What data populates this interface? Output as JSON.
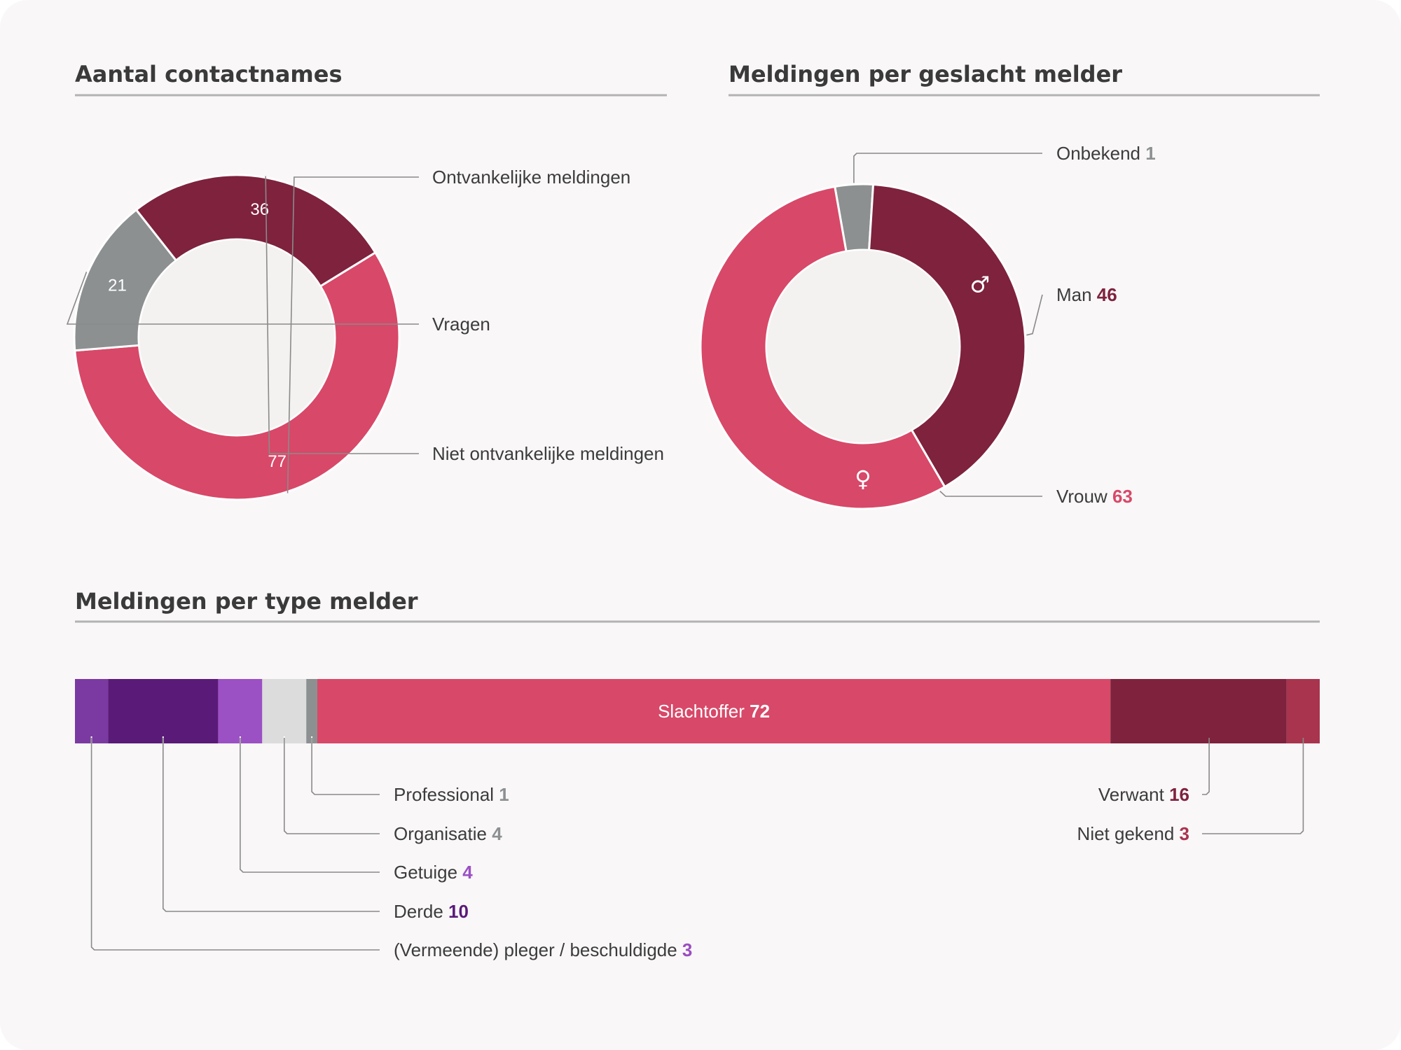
{
  "colors": {
    "background": "#f9f7f8",
    "pink": "#d84868",
    "gray": "#8c9091",
    "darkred": "#7e223d",
    "hole": "#f3f2f0",
    "rule": "#b3b3b3",
    "label": "#3c3c3c",
    "value_gray": "#8c9091"
  },
  "chart_data": [
    {
      "type": "pie",
      "title": "Aantal contactnames",
      "slices": [
        {
          "label": "Ontvankelijke meldingen",
          "value": 77,
          "value_label": "77",
          "color": "#d84868"
        },
        {
          "label": "Vragen",
          "value": 21,
          "value_label": "21",
          "color": "#8c9091"
        },
        {
          "label": "Niet ontvankelijke meldingen",
          "value": 36,
          "value_label": "36",
          "color": "#7e223d"
        }
      ]
    },
    {
      "type": "pie",
      "title": "Meldingen per geslacht melder",
      "slices": [
        {
          "label": "Onbekend",
          "value": 1,
          "value_label": "1",
          "color": "#8c9091",
          "value_color": "#8c9091"
        },
        {
          "label": "Man",
          "value": 46,
          "value_label": "46",
          "color": "#7e223d",
          "value_color": "#7e223d",
          "icon": "male-icon",
          "glyph": "♂"
        },
        {
          "label": "Vrouw",
          "value": 63,
          "value_label": "63",
          "color": "#d84868",
          "value_color": "#d84868",
          "icon": "female-icon",
          "glyph": "♀"
        }
      ]
    },
    {
      "type": "bar",
      "orientation": "horizontal-stacked",
      "title": "Meldingen per type melder",
      "segments": [
        {
          "label": "(Vermeende) pleger / beschuldigde",
          "value": 3,
          "value_label": "3",
          "color": "#7b3aa2",
          "value_color": "#9b4dc0"
        },
        {
          "label": "Derde",
          "value": 10,
          "value_label": "10",
          "color": "#5a1a78",
          "value_color": "#5a1a78"
        },
        {
          "label": "Getuige",
          "value": 4,
          "value_label": "4",
          "color": "#9b50c4",
          "value_color": "#9b50c4"
        },
        {
          "label": "Organisatie",
          "value": 4,
          "value_label": "4",
          "color": "#dcdcdc",
          "value_color": "#8c9091"
        },
        {
          "label": "Professional",
          "value": 1,
          "value_label": "1",
          "color": "#8c9091",
          "value_color": "#8c9091"
        },
        {
          "label": "Slachtoffer",
          "value": 72,
          "value_label": "72",
          "color": "#d84868",
          "value_color": "#ffffff"
        },
        {
          "label": "Verwant",
          "value": 16,
          "value_label": "16",
          "color": "#7e223d",
          "value_color": "#7e223d"
        },
        {
          "label": "Niet gekend",
          "value": 3,
          "value_label": "3",
          "color": "#a9344e",
          "value_color": "#a9344e"
        }
      ]
    }
  ]
}
